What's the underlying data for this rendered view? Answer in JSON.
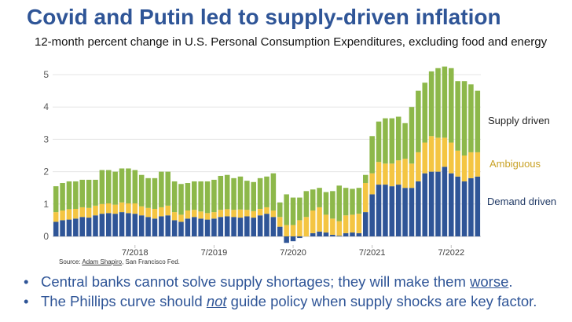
{
  "title": "Covid and Putin led to supply-driven inflation",
  "subtitle": "12-month percent change in U.S. Personal Consumption Expenditures, excluding food and energy",
  "source": {
    "prefix": "Source: ",
    "author": "Adam Shapiro",
    "suffix": ", San Francisco Fed."
  },
  "bullets": [
    {
      "before": "Central banks cannot solve supply shortages; they will make them ",
      "emph": "worse",
      "after": "."
    },
    {
      "before": "The Phillips curve should ",
      "emph": "not",
      "after": " guide policy when supply shocks are key factor."
    }
  ],
  "chart_data": {
    "type": "bar",
    "stacked": true,
    "ylim": [
      -0.3,
      5.4
    ],
    "yticks": [
      "0",
      "1",
      "2",
      "3",
      "4",
      "5"
    ],
    "ytick_values": [
      0,
      1,
      2,
      3,
      4,
      5
    ],
    "xtick_labels": [
      {
        "label": "7/2018",
        "index": 12
      },
      {
        "label": "7/2019",
        "index": 24
      },
      {
        "label": "7/2020",
        "index": 36
      },
      {
        "label": "7/2021",
        "index": 48
      },
      {
        "label": "7/2022",
        "index": 60
      }
    ],
    "colors": {
      "demand": "#2f5597",
      "ambiguous": "#f4c542",
      "supply": "#8db84a"
    },
    "series": [
      {
        "name": "Demand driven",
        "key": "demand",
        "values": [
          0.45,
          0.5,
          0.52,
          0.55,
          0.6,
          0.58,
          0.65,
          0.7,
          0.72,
          0.7,
          0.75,
          0.72,
          0.7,
          0.65,
          0.6,
          0.55,
          0.62,
          0.65,
          0.5,
          0.45,
          0.55,
          0.6,
          0.55,
          0.52,
          0.55,
          0.6,
          0.62,
          0.6,
          0.58,
          0.62,
          0.58,
          0.65,
          0.7,
          0.6,
          0.3,
          -0.2,
          -0.15,
          -0.05,
          0.0,
          0.1,
          0.15,
          0.12,
          0.05,
          0.02,
          0.1,
          0.12,
          0.1,
          0.75,
          1.3,
          1.6,
          1.6,
          1.55,
          1.6,
          1.5,
          1.5,
          1.7,
          1.95,
          2.0,
          2.0,
          2.15,
          1.95,
          1.85,
          1.7,
          1.8,
          1.85
        ]
      },
      {
        "name": "Ambiguous",
        "key": "ambiguous",
        "values": [
          0.3,
          0.3,
          0.32,
          0.3,
          0.3,
          0.3,
          0.3,
          0.3,
          0.3,
          0.28,
          0.3,
          0.3,
          0.32,
          0.28,
          0.28,
          0.3,
          0.28,
          0.3,
          0.25,
          0.22,
          0.25,
          0.22,
          0.22,
          0.2,
          0.2,
          0.22,
          0.22,
          0.22,
          0.25,
          0.2,
          0.2,
          0.2,
          0.2,
          0.2,
          0.3,
          0.35,
          0.35,
          0.5,
          0.6,
          0.7,
          0.75,
          0.55,
          0.5,
          0.45,
          0.55,
          0.55,
          0.6,
          0.9,
          0.65,
          0.7,
          0.65,
          0.7,
          0.75,
          0.9,
          0.75,
          0.9,
          0.95,
          1.1,
          1.05,
          0.9,
          0.95,
          0.8,
          0.8,
          0.8,
          0.75
        ]
      },
      {
        "name": "Supply driven",
        "key": "supply",
        "values": [
          0.8,
          0.85,
          0.86,
          0.85,
          0.85,
          0.87,
          0.8,
          1.05,
          1.03,
          1.02,
          1.05,
          1.08,
          1.03,
          0.97,
          0.92,
          0.95,
          1.1,
          1.05,
          0.95,
          0.95,
          0.85,
          0.88,
          0.93,
          0.98,
          1.0,
          1.05,
          1.06,
          0.98,
          1.02,
          0.9,
          0.9,
          0.95,
          0.95,
          1.15,
          0.45,
          0.95,
          0.85,
          0.7,
          0.8,
          0.65,
          0.6,
          0.7,
          0.85,
          1.1,
          0.85,
          0.8,
          0.8,
          0.25,
          1.15,
          1.25,
          1.4,
          1.4,
          1.35,
          1.1,
          1.75,
          1.9,
          1.85,
          2.0,
          2.15,
          2.2,
          2.3,
          2.15,
          2.3,
          2.1,
          1.9
        ]
      }
    ]
  }
}
